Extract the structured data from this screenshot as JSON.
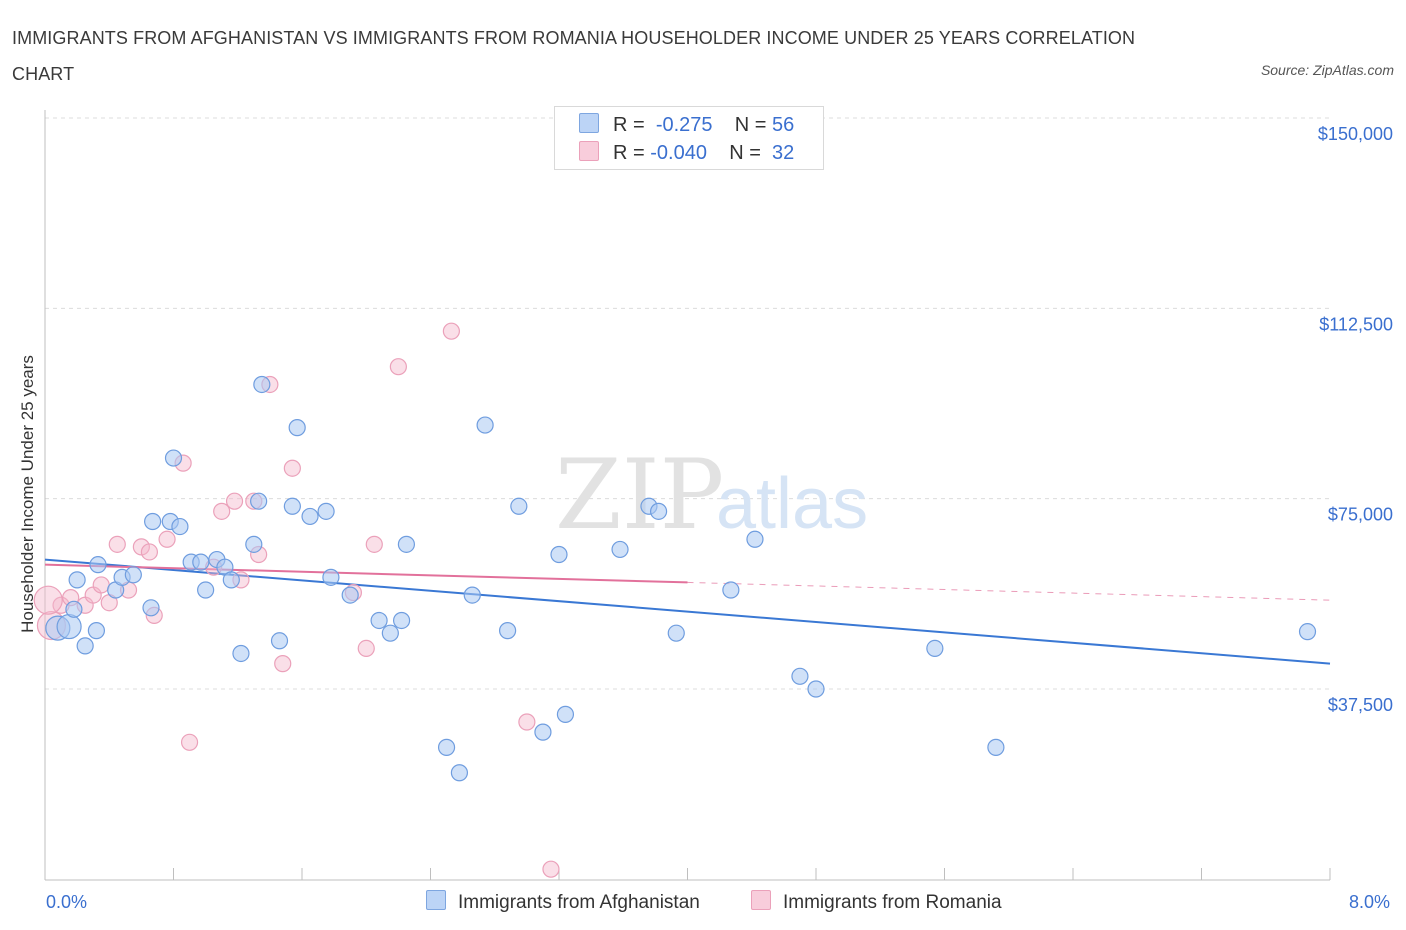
{
  "title": "IMMIGRANTS FROM AFGHANISTAN VS IMMIGRANTS FROM ROMANIA HOUSEHOLDER INCOME UNDER 25 YEARS CORRELATION CHART",
  "source": "Source: ZipAtlas.com",
  "watermark": {
    "zip": "ZIP",
    "atlas": "atlas"
  },
  "legend": {
    "rows": [
      {
        "r_label": "R =",
        "r_value": "-0.275",
        "n_label": "N =",
        "n_value": "56",
        "color": "#a9c8f2"
      },
      {
        "r_label": "R =",
        "r_value": "-0.040",
        "n_label": "N =",
        "n_value": "32",
        "color": "#f4b8cc"
      }
    ]
  },
  "bottom_legend": [
    {
      "label": "Immigrants from Afghanistan",
      "color": "#a9c8f2"
    },
    {
      "label": "Immigrants from Romania",
      "color": "#f4b8cc"
    }
  ],
  "colors": {
    "blue": "#3a78d4",
    "pink": "#e2719b",
    "blue_fill": "#a9c8f2",
    "pink_fill": "#f4b8cc",
    "axis_text": "#3a6fcf"
  },
  "chart_data": {
    "type": "scatter",
    "ylabel": "Householder Income Under 25 years",
    "x_tick_labels": {
      "min": "0.0%",
      "max": "8.0%"
    },
    "y_tick_labels": [
      "$37,500",
      "$75,000",
      "$112,500",
      "$150,000"
    ],
    "y_ticks": [
      37500,
      75000,
      112500,
      150000
    ],
    "xlim": [
      0,
      8
    ],
    "ylim": [
      0,
      150000
    ],
    "grid": true,
    "series": [
      {
        "name": "Immigrants from Afghanistan",
        "points": [
          [
            0.08,
            49500
          ],
          [
            0.15,
            49800
          ],
          [
            0.18,
            53200
          ],
          [
            0.25,
            46000
          ],
          [
            0.32,
            49000
          ],
          [
            0.2,
            59000
          ],
          [
            0.33,
            62000
          ],
          [
            0.44,
            57000
          ],
          [
            0.48,
            59500
          ],
          [
            0.55,
            60000
          ],
          [
            0.66,
            53500
          ],
          [
            0.67,
            70500
          ],
          [
            0.78,
            70500
          ],
          [
            0.8,
            83000
          ],
          [
            0.84,
            69500
          ],
          [
            0.91,
            62500
          ],
          [
            0.97,
            62500
          ],
          [
            1.0,
            57000
          ],
          [
            1.07,
            63000
          ],
          [
            1.12,
            61500
          ],
          [
            1.16,
            59000
          ],
          [
            1.22,
            44500
          ],
          [
            1.3,
            66000
          ],
          [
            1.33,
            74500
          ],
          [
            1.35,
            97500
          ],
          [
            1.46,
            47000
          ],
          [
            1.54,
            73500
          ],
          [
            1.57,
            89000
          ],
          [
            1.65,
            71500
          ],
          [
            1.75,
            72500
          ],
          [
            1.78,
            59500
          ],
          [
            1.9,
            56000
          ],
          [
            2.08,
            51000
          ],
          [
            2.15,
            48500
          ],
          [
            2.22,
            51000
          ],
          [
            2.25,
            66000
          ],
          [
            2.5,
            26000
          ],
          [
            2.58,
            21000
          ],
          [
            2.66,
            56000
          ],
          [
            2.74,
            89500
          ],
          [
            2.88,
            49000
          ],
          [
            2.95,
            73500
          ],
          [
            3.1,
            29000
          ],
          [
            3.2,
            64000
          ],
          [
            3.24,
            32500
          ],
          [
            3.58,
            65000
          ],
          [
            3.76,
            73500
          ],
          [
            3.82,
            72500
          ],
          [
            3.93,
            48500
          ],
          [
            4.27,
            57000
          ],
          [
            4.42,
            67000
          ],
          [
            4.7,
            40000
          ],
          [
            4.8,
            37500
          ],
          [
            5.54,
            45500
          ],
          [
            5.92,
            26000
          ],
          [
            7.86,
            48800
          ]
        ]
      },
      {
        "name": "Immigrants from Romania",
        "points": [
          [
            0.04,
            50000
          ],
          [
            0.1,
            54000
          ],
          [
            0.16,
            55500
          ],
          [
            0.25,
            54000
          ],
          [
            0.3,
            56000
          ],
          [
            0.35,
            58000
          ],
          [
            0.4,
            54500
          ],
          [
            0.45,
            66000
          ],
          [
            0.52,
            57000
          ],
          [
            0.6,
            65500
          ],
          [
            0.65,
            64500
          ],
          [
            0.68,
            52000
          ],
          [
            0.76,
            67000
          ],
          [
            0.86,
            82000
          ],
          [
            0.9,
            27000
          ],
          [
            1.05,
            61500
          ],
          [
            1.1,
            72500
          ],
          [
            1.18,
            74500
          ],
          [
            1.22,
            59000
          ],
          [
            1.3,
            74500
          ],
          [
            1.33,
            64000
          ],
          [
            1.4,
            97500
          ],
          [
            1.48,
            42500
          ],
          [
            1.54,
            81000
          ],
          [
            1.92,
            56500
          ],
          [
            2.0,
            45500
          ],
          [
            2.05,
            66000
          ],
          [
            2.2,
            101000
          ],
          [
            2.53,
            108000
          ],
          [
            3.0,
            31000
          ],
          [
            3.15,
            2000
          ],
          [
            0.02,
            55000
          ]
        ]
      }
    ],
    "trend_lines": [
      {
        "series": "Immigrants from Afghanistan",
        "x0": 0,
        "y0": 63000,
        "x1": 8,
        "y1": 42500
      },
      {
        "series": "Immigrants from Romania",
        "x0": 0,
        "y0": 62000,
        "x1": 4,
        "y1": 58500,
        "dashed_to_x": 8,
        "dashed_to_y": 55000
      }
    ]
  }
}
